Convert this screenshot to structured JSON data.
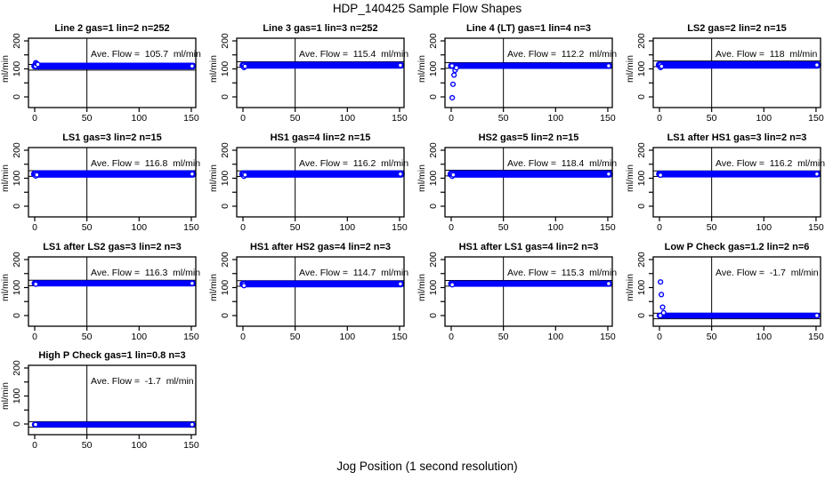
{
  "figure": {
    "title": "HDP_140425  Sample Flow Shapes",
    "xlabel": "Jog Position (1 second resolution)",
    "ylabel": "ml/min"
  },
  "style": {
    "point_color": "#0000FF",
    "axis_color": "#000000",
    "background": "#FFFFFF"
  },
  "axes": {
    "x_ticks": [
      0,
      50,
      100,
      150
    ],
    "y_ticks": [
      0,
      50,
      100,
      150,
      200
    ],
    "y_labeled_ticks": [
      0,
      100,
      200
    ],
    "xlim": [
      -6,
      154
    ],
    "ylim": [
      -39,
      209
    ],
    "vline_x": 50,
    "hline_offset": 10,
    "grid": false
  },
  "chart_data": [
    {
      "type": "scatter",
      "title": "Line 2 gas=1 lin=2 n=252",
      "ave_text": "Ave. Flow =  105.7  ml/min",
      "ave_value": 105.7,
      "band": {
        "center": 110,
        "half": 8,
        "x_start": 0,
        "x_end": 151.5
      },
      "transients": [
        [
          1,
          122
        ],
        [
          2,
          119
        ],
        [
          3,
          116
        ]
      ]
    },
    {
      "type": "scatter",
      "title": "Line 3 gas=1 lin=3 n=252",
      "ave_text": "Ave. Flow =  115.4  ml/min",
      "ave_value": 115.4,
      "band": {
        "center": 113,
        "half": 8,
        "x_start": 0,
        "x_end": 151.5
      },
      "transients": [
        [
          1,
          105
        ],
        [
          2,
          109
        ]
      ]
    },
    {
      "type": "scatter",
      "title": "Line 4 (LT) gas=1 lin=4 n=3",
      "ave_text": "Ave. Flow =  112.2  ml/min",
      "ave_value": 112.2,
      "band": {
        "center": 111,
        "half": 7,
        "x_start": 0,
        "x_end": 151.5
      },
      "transients": [
        [
          1,
          -3
        ],
        [
          1.7,
          45
        ],
        [
          2.7,
          78
        ],
        [
          3.7,
          95
        ],
        [
          5,
          104
        ]
      ]
    },
    {
      "type": "scatter",
      "title": "LS2 gas=2 lin=2 n=15",
      "ave_text": "Ave. Flow =  118  ml/min",
      "ave_value": 118,
      "band": {
        "center": 114,
        "half": 9,
        "x_start": 0,
        "x_end": 151.5
      },
      "transients": [
        [
          1,
          105
        ],
        [
          2,
          109
        ]
      ]
    },
    {
      "type": "scatter",
      "title": "LS1 gas=3 lin=2 n=15",
      "ave_text": "Ave. Flow =  116.8  ml/min",
      "ave_value": 116.8,
      "band": {
        "center": 115,
        "half": 9,
        "x_start": 0,
        "x_end": 151.5
      },
      "transients": [
        [
          1,
          108
        ],
        [
          2,
          112
        ]
      ]
    },
    {
      "type": "scatter",
      "title": "HS1 gas=4 lin=2 n=15",
      "ave_text": "Ave. Flow =  116.2  ml/min",
      "ave_value": 116.2,
      "band": {
        "center": 115,
        "half": 9,
        "x_start": 0,
        "x_end": 151.5
      },
      "transients": [
        [
          1,
          107
        ],
        [
          2,
          112
        ]
      ]
    },
    {
      "type": "scatter",
      "title": "HS2 gas=5 lin=2 n=15",
      "ave_text": "Ave. Flow =  118.4  ml/min",
      "ave_value": 118.4,
      "band": {
        "center": 115,
        "half": 9,
        "x_start": 0,
        "x_end": 151.5
      },
      "transients": [
        [
          1,
          107
        ],
        [
          2,
          112
        ]
      ]
    },
    {
      "type": "scatter",
      "title": "LS1 after HS1 gas=3 lin=2 n=3",
      "ave_text": "Ave. Flow =  116.2  ml/min",
      "ave_value": 116.2,
      "band": {
        "center": 115,
        "half": 8,
        "x_start": 0,
        "x_end": 151.5
      },
      "transients": [
        [
          1,
          111
        ]
      ]
    },
    {
      "type": "scatter",
      "title": "LS1 after LS2 gas=3 lin=2 n=3",
      "ave_text": "Ave. Flow =  116.3  ml/min",
      "ave_value": 116.3,
      "band": {
        "center": 115,
        "half": 7,
        "x_start": 0,
        "x_end": 151.5
      },
      "transients": [
        [
          1,
          112
        ]
      ]
    },
    {
      "type": "scatter",
      "title": "HS1 after HS2 gas=4 lin=2 n=3",
      "ave_text": "Ave. Flow =  114.7  ml/min",
      "ave_value": 114.7,
      "band": {
        "center": 113,
        "half": 8,
        "x_start": 0,
        "x_end": 151.5
      },
      "transients": [
        [
          1,
          107
        ]
      ]
    },
    {
      "type": "scatter",
      "title": "HS1 after LS1 gas=4 lin=2 n=3",
      "ave_text": "Ave. Flow =  115.3  ml/min",
      "ave_value": 115.3,
      "band": {
        "center": 114,
        "half": 7,
        "x_start": 0,
        "x_end": 151.5
      },
      "transients": [
        [
          1,
          110
        ]
      ]
    },
    {
      "type": "scatter",
      "title": "Low P Check gas=1.2 lin=2 n=6",
      "ave_text": "Ave. Flow =  -1.7  ml/min",
      "ave_value": -1.7,
      "band": {
        "center": 0,
        "half": 6,
        "x_start": 0,
        "x_end": 151.5
      },
      "transients": [
        [
          1,
          120
        ],
        [
          1.8,
          75
        ],
        [
          3,
          30
        ],
        [
          4,
          10
        ]
      ]
    },
    {
      "type": "scatter",
      "title": "High P Check gas=1 lin=0.8 n=3",
      "ave_text": "Ave. Flow =  -1.7  ml/min",
      "ave_value": -1.7,
      "band": {
        "center": -2,
        "half": 6,
        "x_start": 0,
        "x_end": 151.5
      },
      "transients": []
    }
  ]
}
